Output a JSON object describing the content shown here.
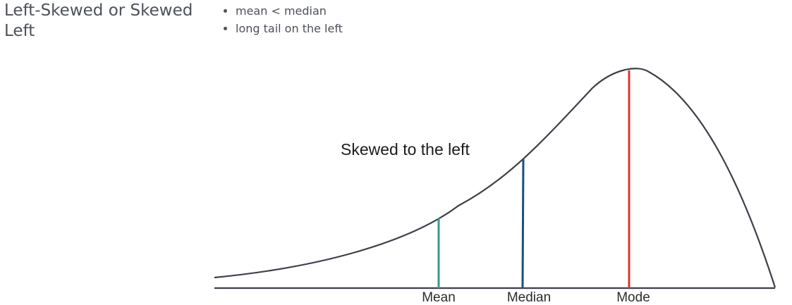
{
  "heading": {
    "title": "Left-Skewed or Skewed Left"
  },
  "bullets": [
    "mean < median",
    "long tail on the left"
  ],
  "diagram": {
    "caption": "Skewed to the left",
    "markers": [
      {
        "label": "Mean",
        "color": "#3a9a93"
      },
      {
        "label": "Median",
        "color": "#1b4f7f"
      },
      {
        "label": "Mode",
        "color": "#e2342f"
      }
    ],
    "curve_color": "#3d3f4a",
    "axis_color": "#3d3f4a"
  }
}
